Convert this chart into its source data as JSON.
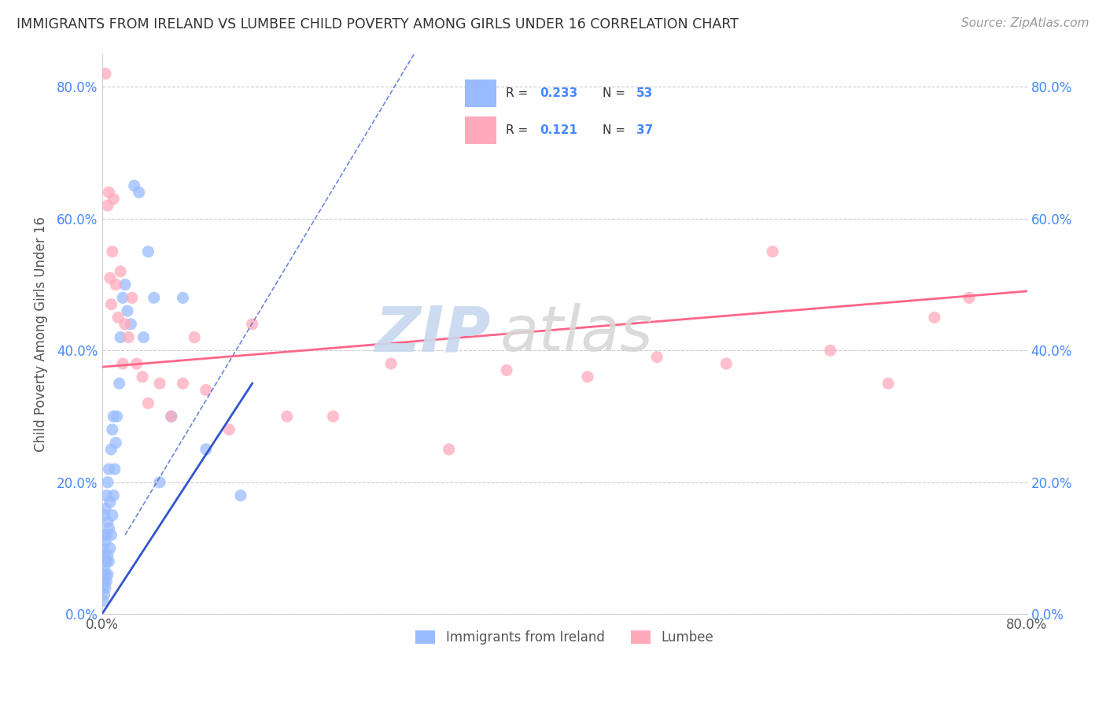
{
  "title": "IMMIGRANTS FROM IRELAND VS LUMBEE CHILD POVERTY AMONG GIRLS UNDER 16 CORRELATION CHART",
  "source": "Source: ZipAtlas.com",
  "ylabel": "Child Poverty Among Girls Under 16",
  "xlim": [
    0.0,
    0.8
  ],
  "ylim": [
    0.0,
    0.85
  ],
  "ytick_vals": [
    0.0,
    0.2,
    0.4,
    0.6,
    0.8
  ],
  "xtick_vals": [
    0.0,
    0.8
  ],
  "blue_color": "#99bbff",
  "pink_color": "#ffaabb",
  "line_blue_color": "#3355cc",
  "line_pink_color": "#ff6688",
  "watermark_zip": "ZIP",
  "watermark_atlas": "atlas",
  "blue_scatter_x": [
    0.001,
    0.001,
    0.001,
    0.001,
    0.002,
    0.002,
    0.002,
    0.002,
    0.002,
    0.002,
    0.003,
    0.003,
    0.003,
    0.003,
    0.003,
    0.004,
    0.004,
    0.004,
    0.004,
    0.005,
    0.005,
    0.005,
    0.005,
    0.006,
    0.006,
    0.006,
    0.007,
    0.007,
    0.008,
    0.008,
    0.009,
    0.009,
    0.01,
    0.01,
    0.011,
    0.012,
    0.013,
    0.015,
    0.016,
    0.018,
    0.02,
    0.022,
    0.025,
    0.028,
    0.032,
    0.036,
    0.04,
    0.045,
    0.05,
    0.06,
    0.07,
    0.09,
    0.12
  ],
  "blue_scatter_y": [
    0.02,
    0.04,
    0.06,
    0.1,
    0.03,
    0.05,
    0.07,
    0.09,
    0.12,
    0.15,
    0.04,
    0.06,
    0.08,
    0.11,
    0.16,
    0.05,
    0.08,
    0.12,
    0.18,
    0.06,
    0.09,
    0.14,
    0.2,
    0.08,
    0.13,
    0.22,
    0.1,
    0.17,
    0.12,
    0.25,
    0.15,
    0.28,
    0.18,
    0.3,
    0.22,
    0.26,
    0.3,
    0.35,
    0.42,
    0.48,
    0.5,
    0.46,
    0.44,
    0.65,
    0.64,
    0.42,
    0.55,
    0.48,
    0.2,
    0.3,
    0.48,
    0.25,
    0.18
  ],
  "pink_scatter_x": [
    0.003,
    0.005,
    0.006,
    0.007,
    0.008,
    0.009,
    0.01,
    0.012,
    0.014,
    0.016,
    0.018,
    0.02,
    0.023,
    0.026,
    0.03,
    0.035,
    0.04,
    0.05,
    0.06,
    0.07,
    0.08,
    0.09,
    0.11,
    0.13,
    0.16,
    0.2,
    0.25,
    0.3,
    0.35,
    0.42,
    0.48,
    0.54,
    0.58,
    0.63,
    0.68,
    0.72,
    0.75
  ],
  "pink_scatter_y": [
    0.82,
    0.62,
    0.64,
    0.51,
    0.47,
    0.55,
    0.63,
    0.5,
    0.45,
    0.52,
    0.38,
    0.44,
    0.42,
    0.48,
    0.38,
    0.36,
    0.32,
    0.35,
    0.3,
    0.35,
    0.42,
    0.34,
    0.28,
    0.44,
    0.3,
    0.3,
    0.38,
    0.25,
    0.37,
    0.36,
    0.39,
    0.38,
    0.55,
    0.4,
    0.35,
    0.45,
    0.48
  ],
  "pink_line_x0": 0.0,
  "pink_line_y0": 0.375,
  "pink_line_x1": 0.8,
  "pink_line_y1": 0.49,
  "blue_line_x0": 0.0,
  "blue_line_y0": 0.0,
  "blue_line_x1": 0.13,
  "blue_line_y1": 0.35
}
